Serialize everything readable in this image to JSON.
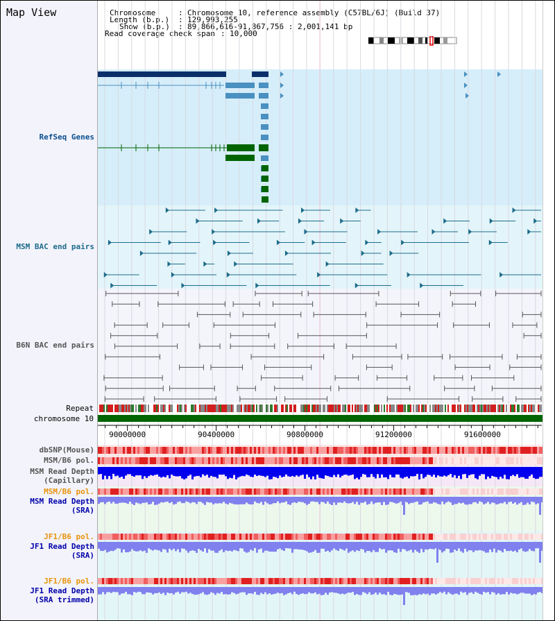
{
  "title": "Map View",
  "header": {
    "chromosome_key": "Chromosome",
    "chromosome_value": "Chromosome 10, reference assembly (C57BL/6J) (Build 37)",
    "length_key": "Length (b.p.)",
    "length_value": "129,993,255",
    "show_key": "Show (b.p.)",
    "show_value": "89,866,616-91,867,756 : 2,001,141 bp",
    "coverage_key": "Read coverage check span",
    "coverage_value": "10,000"
  },
  "tracks": {
    "refseq": "RefSeq Genes",
    "msm_bac": "MSM BAC end pairs",
    "b6n_bac": "B6N BAC end pairs",
    "repeat": "Repeat",
    "chromosome": "chromosome 10",
    "dbsnp": "dbSNP(Mouse)",
    "msm_b6_pol_1": "MSM/B6 pol.",
    "msm_read_cap_1": "MSM Read Depth",
    "msm_read_cap_2": "(Capillary)",
    "msm_b6_pol_2": "MSM/B6 pol.",
    "msm_read_sra_1": "MSM Read Depth",
    "msm_read_sra_2": "(SRA)",
    "jf1_b6_pol_1": "JF1/B6 pol.",
    "jf1_read_sra_1": "JF1 Read Depth",
    "jf1_read_sra_2": "(SRA)",
    "jf1_b6_pol_2": "JF1/B6 pol.",
    "jf1_read_trim_1": "JF1 Read Depth",
    "jf1_read_trim_2": "(SRA trimmed)"
  },
  "axis": {
    "ticks": [
      {
        "label": "90000000",
        "value": 90000000
      },
      {
        "label": "90400000",
        "value": 90400000
      },
      {
        "label": "90800000",
        "value": 90800000
      },
      {
        "label": "91200000",
        "value": 91200000
      },
      {
        "label": "91600000",
        "value": 91600000
      }
    ],
    "range": [
      89866616,
      91867756
    ]
  },
  "colors": {
    "refseq_dark": "#0b2f6b",
    "refseq_mid": "#4a90c0",
    "refseq_green": "#006400",
    "msm_bac": "#1d6b8a",
    "b6n_bac": "#555555",
    "chromosome_bar": "#006400",
    "read_depth_cap": "#0000ee",
    "read_depth_sra": "#8080ee"
  }
}
